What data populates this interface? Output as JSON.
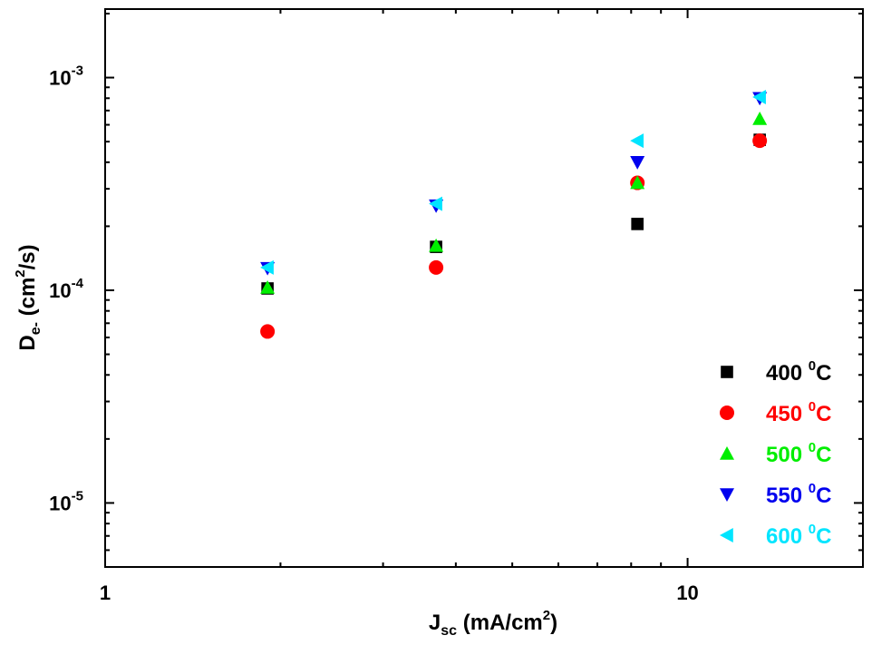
{
  "chart_data": {
    "type": "scatter",
    "x_scale": "log",
    "y_scale": "log",
    "xlim": [
      1,
      20
    ],
    "ylim": [
      5e-06,
      0.0021
    ],
    "x_ticks": [
      {
        "value": 1,
        "label": "1"
      },
      {
        "value": 10,
        "label": "10"
      }
    ],
    "y_ticks": [
      {
        "value": 1e-05,
        "base": "10",
        "exp": "-5"
      },
      {
        "value": 0.0001,
        "base": "10",
        "exp": "-4"
      },
      {
        "value": 0.001,
        "base": "10",
        "exp": "-3"
      }
    ],
    "xlabel": {
      "main": "J",
      "sub": "sc",
      "rest": " (mA/cm",
      "sup": "2",
      "end": ")"
    },
    "ylabel": {
      "main": "D",
      "sub": "e-",
      "rest": " (cm",
      "sup": "2",
      "end": "/s)"
    },
    "grid": false,
    "legend_position": "bottom-right",
    "series": [
      {
        "name": "400",
        "unit_sup": "0",
        "unit": "C",
        "marker": "square",
        "color": "#000000",
        "points": [
          [
            1.9,
            0.000102
          ],
          [
            3.7,
            0.00016
          ],
          [
            8.2,
            0.000205
          ],
          [
            13.3,
            0.00051
          ]
        ]
      },
      {
        "name": "450",
        "unit_sup": "0",
        "unit": "C",
        "marker": "circle",
        "color": "#ff0000",
        "points": [
          [
            1.9,
            6.4e-05
          ],
          [
            3.7,
            0.000128
          ],
          [
            8.2,
            0.00032
          ],
          [
            13.3,
            0.000505
          ]
        ]
      },
      {
        "name": "500",
        "unit_sup": "0",
        "unit": "C",
        "marker": "triangle-up",
        "color": "#00ee00",
        "points": [
          [
            1.9,
            0.000103
          ],
          [
            3.7,
            0.000162
          ],
          [
            8.2,
            0.00032
          ],
          [
            13.3,
            0.00064
          ]
        ]
      },
      {
        "name": "550",
        "unit_sup": "0",
        "unit": "C",
        "marker": "triangle-down",
        "color": "#0000ee",
        "points": [
          [
            1.9,
            0.000127
          ],
          [
            3.7,
            0.00025
          ],
          [
            8.2,
            0.0004
          ],
          [
            13.3,
            0.0008
          ]
        ]
      },
      {
        "name": "600",
        "unit_sup": "0",
        "unit": "C",
        "marker": "triangle-left",
        "color": "#00e5ff",
        "points": [
          [
            1.9,
            0.000128
          ],
          [
            3.7,
            0.000255
          ],
          [
            8.2,
            0.000505
          ],
          [
            13.3,
            0.00081
          ]
        ]
      }
    ]
  }
}
